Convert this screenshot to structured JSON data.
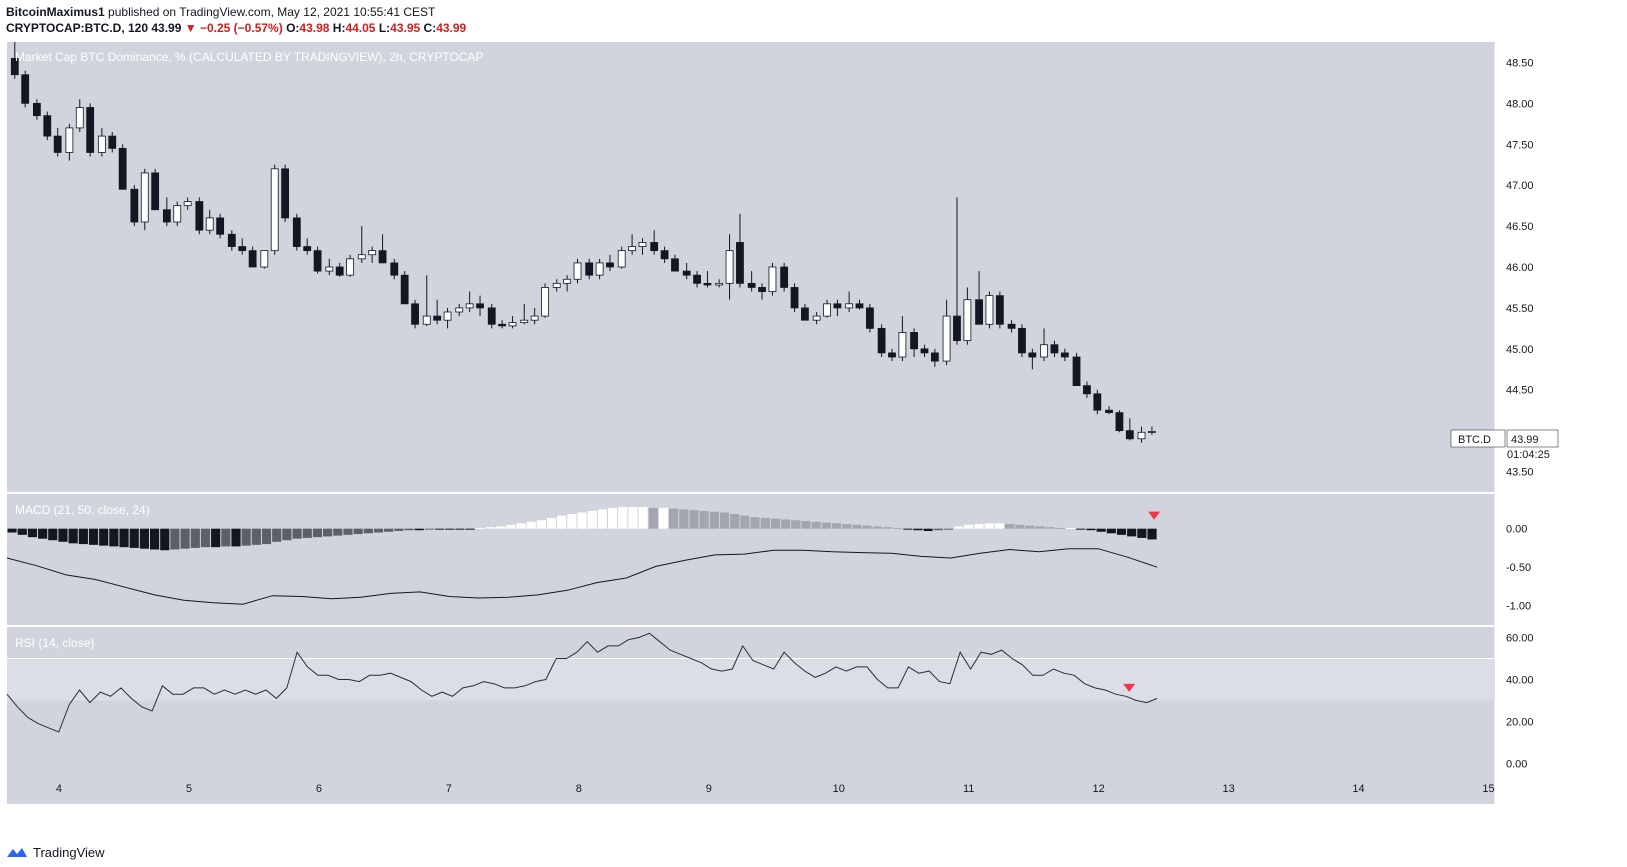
{
  "header": {
    "author": "BitcoinMaximus1",
    "published": "published on TradingView.com, May 12, 2021 10:55:41 CEST",
    "symbol": "CRYPTOCAP:BTC.D, 120",
    "last": "43.99",
    "change": "−0.25 (−0.57%)",
    "o_label": "O:",
    "o_value": "43.98",
    "h_label": "H:",
    "h_value": "44.05",
    "l_label": "L:",
    "l_value": "43.95",
    "c_label": "C:",
    "c_value": "43.99"
  },
  "colors": {
    "pane_bg": "#d1d4dc",
    "up_fill": "#ffffff",
    "down_fill": "#131722",
    "wick": "#131722",
    "macd_line": "#131722",
    "rsi_line": "#2a2e39",
    "rsi_band": "#dcdee5",
    "marker": "#f23645",
    "axis_text": "#131722"
  },
  "chart_data": [
    {
      "type": "candlestick",
      "title": "Market Cap BTC Dominance, % (CALCULATED BY TRADINGVIEW), 2h, CRYPTOCAP",
      "ylim": [
        43.25,
        48.75
      ],
      "yticks": [
        "48.50",
        "48.00",
        "47.50",
        "47.00",
        "46.50",
        "46.00",
        "45.50",
        "45.00",
        "44.50",
        "43.50"
      ],
      "xlim": [
        3.6,
        15.05
      ],
      "xticks": [
        "4",
        "5",
        "6",
        "7",
        "8",
        "9",
        "10",
        "11",
        "12",
        "13",
        "14",
        "15"
      ],
      "price_label": {
        "symbol": "BTC.D",
        "value": "43.99",
        "countdown": "01:04:25"
      },
      "candles": [
        {
          "t": 3.66,
          "o": 48.55,
          "h": 48.75,
          "l": 48.3,
          "c": 48.35
        },
        {
          "t": 3.74,
          "o": 48.35,
          "h": 48.4,
          "l": 47.95,
          "c": 48.0
        },
        {
          "t": 3.83,
          "o": 48.0,
          "h": 48.05,
          "l": 47.8,
          "c": 47.85
        },
        {
          "t": 3.91,
          "o": 47.85,
          "h": 47.9,
          "l": 47.55,
          "c": 47.6
        },
        {
          "t": 3.99,
          "o": 47.6,
          "h": 47.7,
          "l": 47.35,
          "c": 47.4
        },
        {
          "t": 4.08,
          "o": 47.4,
          "h": 47.75,
          "l": 47.3,
          "c": 47.7
        },
        {
          "t": 4.16,
          "o": 47.7,
          "h": 48.05,
          "l": 47.65,
          "c": 47.95
        },
        {
          "t": 4.24,
          "o": 47.95,
          "h": 48.0,
          "l": 47.35,
          "c": 47.4
        },
        {
          "t": 4.33,
          "o": 47.4,
          "h": 47.7,
          "l": 47.35,
          "c": 47.6
        },
        {
          "t": 4.41,
          "o": 47.6,
          "h": 47.65,
          "l": 47.4,
          "c": 47.45
        },
        {
          "t": 4.49,
          "o": 47.45,
          "h": 47.5,
          "l": 46.95,
          "c": 46.95
        },
        {
          "t": 4.58,
          "o": 46.95,
          "h": 47.0,
          "l": 46.5,
          "c": 46.55
        },
        {
          "t": 4.66,
          "o": 46.55,
          "h": 47.2,
          "l": 46.45,
          "c": 47.15
        },
        {
          "t": 4.74,
          "o": 47.15,
          "h": 47.2,
          "l": 46.7,
          "c": 46.7
        },
        {
          "t": 4.83,
          "o": 46.7,
          "h": 46.85,
          "l": 46.5,
          "c": 46.55
        },
        {
          "t": 4.91,
          "o": 46.55,
          "h": 46.8,
          "l": 46.5,
          "c": 46.75
        },
        {
          "t": 4.99,
          "o": 46.75,
          "h": 46.85,
          "l": 46.7,
          "c": 46.8
        },
        {
          "t": 5.08,
          "o": 46.8,
          "h": 46.85,
          "l": 46.4,
          "c": 46.45
        },
        {
          "t": 5.16,
          "o": 46.45,
          "h": 46.7,
          "l": 46.4,
          "c": 46.6
        },
        {
          "t": 5.24,
          "o": 46.6,
          "h": 46.65,
          "l": 46.35,
          "c": 46.4
        },
        {
          "t": 5.33,
          "o": 46.4,
          "h": 46.45,
          "l": 46.2,
          "c": 46.25
        },
        {
          "t": 5.41,
          "o": 46.25,
          "h": 46.35,
          "l": 46.15,
          "c": 46.2
        },
        {
          "t": 5.49,
          "o": 46.2,
          "h": 46.25,
          "l": 46.0,
          "c": 46.0
        },
        {
          "t": 5.58,
          "o": 46.0,
          "h": 46.2,
          "l": 45.98,
          "c": 46.2
        },
        {
          "t": 5.66,
          "o": 46.2,
          "h": 47.25,
          "l": 46.15,
          "c": 47.2
        },
        {
          "t": 5.74,
          "o": 47.2,
          "h": 47.25,
          "l": 46.55,
          "c": 46.6
        },
        {
          "t": 5.83,
          "o": 46.6,
          "h": 46.65,
          "l": 46.2,
          "c": 46.25
        },
        {
          "t": 5.91,
          "o": 46.25,
          "h": 46.35,
          "l": 46.15,
          "c": 46.2
        },
        {
          "t": 5.99,
          "o": 46.2,
          "h": 46.25,
          "l": 45.92,
          "c": 45.95
        },
        {
          "t": 6.08,
          "o": 45.95,
          "h": 46.1,
          "l": 45.9,
          "c": 46.0
        },
        {
          "t": 6.16,
          "o": 46.0,
          "h": 46.05,
          "l": 45.88,
          "c": 45.9
        },
        {
          "t": 6.24,
          "o": 45.9,
          "h": 46.15,
          "l": 45.88,
          "c": 46.1
        },
        {
          "t": 6.33,
          "o": 46.1,
          "h": 46.5,
          "l": 46.05,
          "c": 46.15
        },
        {
          "t": 6.41,
          "o": 46.15,
          "h": 46.25,
          "l": 46.05,
          "c": 46.2
        },
        {
          "t": 6.49,
          "o": 46.2,
          "h": 46.4,
          "l": 46.05,
          "c": 46.05
        },
        {
          "t": 6.58,
          "o": 46.05,
          "h": 46.1,
          "l": 45.85,
          "c": 45.9
        },
        {
          "t": 6.66,
          "o": 45.9,
          "h": 45.95,
          "l": 45.55,
          "c": 45.55
        },
        {
          "t": 6.74,
          "o": 45.55,
          "h": 45.6,
          "l": 45.25,
          "c": 45.3
        },
        {
          "t": 6.83,
          "o": 45.3,
          "h": 45.9,
          "l": 45.28,
          "c": 45.4
        },
        {
          "t": 6.91,
          "o": 45.4,
          "h": 45.6,
          "l": 45.3,
          "c": 45.35
        },
        {
          "t": 6.99,
          "o": 45.35,
          "h": 45.5,
          "l": 45.25,
          "c": 45.45
        },
        {
          "t": 7.08,
          "o": 45.45,
          "h": 45.55,
          "l": 45.4,
          "c": 45.5
        },
        {
          "t": 7.16,
          "o": 45.5,
          "h": 45.7,
          "l": 45.45,
          "c": 45.55
        },
        {
          "t": 7.24,
          "o": 45.55,
          "h": 45.65,
          "l": 45.4,
          "c": 45.5
        },
        {
          "t": 7.33,
          "o": 45.5,
          "h": 45.55,
          "l": 45.25,
          "c": 45.3
        },
        {
          "t": 7.41,
          "o": 45.3,
          "h": 45.35,
          "l": 45.25,
          "c": 45.28
        },
        {
          "t": 7.49,
          "o": 45.28,
          "h": 45.4,
          "l": 45.25,
          "c": 45.32
        },
        {
          "t": 7.58,
          "o": 45.32,
          "h": 45.55,
          "l": 45.3,
          "c": 45.35
        },
        {
          "t": 7.66,
          "o": 45.35,
          "h": 45.5,
          "l": 45.3,
          "c": 45.4
        },
        {
          "t": 7.74,
          "o": 45.4,
          "h": 45.8,
          "l": 45.38,
          "c": 45.75
        },
        {
          "t": 7.83,
          "o": 45.75,
          "h": 45.85,
          "l": 45.7,
          "c": 45.8
        },
        {
          "t": 7.91,
          "o": 45.8,
          "h": 45.9,
          "l": 45.7,
          "c": 45.85
        },
        {
          "t": 7.99,
          "o": 45.85,
          "h": 46.1,
          "l": 45.8,
          "c": 46.05
        },
        {
          "t": 8.08,
          "o": 46.05,
          "h": 46.1,
          "l": 45.85,
          "c": 45.9
        },
        {
          "t": 8.16,
          "o": 45.9,
          "h": 46.1,
          "l": 45.85,
          "c": 46.05
        },
        {
          "t": 8.24,
          "o": 46.05,
          "h": 46.15,
          "l": 45.95,
          "c": 46.0
        },
        {
          "t": 8.33,
          "o": 46.0,
          "h": 46.25,
          "l": 45.98,
          "c": 46.2
        },
        {
          "t": 8.41,
          "o": 46.2,
          "h": 46.4,
          "l": 46.15,
          "c": 46.25
        },
        {
          "t": 8.49,
          "o": 46.25,
          "h": 46.35,
          "l": 46.15,
          "c": 46.3
        },
        {
          "t": 8.58,
          "o": 46.3,
          "h": 46.45,
          "l": 46.15,
          "c": 46.2
        },
        {
          "t": 8.66,
          "o": 46.2,
          "h": 46.25,
          "l": 46.05,
          "c": 46.1
        },
        {
          "t": 8.74,
          "o": 46.1,
          "h": 46.15,
          "l": 45.95,
          "c": 45.95
        },
        {
          "t": 8.83,
          "o": 45.95,
          "h": 46.05,
          "l": 45.85,
          "c": 45.9
        },
        {
          "t": 8.91,
          "o": 45.9,
          "h": 45.95,
          "l": 45.75,
          "c": 45.8
        },
        {
          "t": 8.99,
          "o": 45.8,
          "h": 45.95,
          "l": 45.75,
          "c": 45.78
        },
        {
          "t": 9.08,
          "o": 45.78,
          "h": 45.85,
          "l": 45.75,
          "c": 45.8
        },
        {
          "t": 9.16,
          "o": 45.8,
          "h": 46.4,
          "l": 45.6,
          "c": 46.2
        },
        {
          "t": 9.24,
          "o": 46.3,
          "h": 46.65,
          "l": 45.75,
          "c": 45.8
        },
        {
          "t": 9.33,
          "o": 45.8,
          "h": 45.95,
          "l": 45.7,
          "c": 45.75
        },
        {
          "t": 9.41,
          "o": 45.75,
          "h": 45.8,
          "l": 45.6,
          "c": 45.7
        },
        {
          "t": 9.49,
          "o": 45.7,
          "h": 46.05,
          "l": 45.65,
          "c": 46.0
        },
        {
          "t": 9.58,
          "o": 46.0,
          "h": 46.05,
          "l": 45.7,
          "c": 45.75
        },
        {
          "t": 9.66,
          "o": 45.75,
          "h": 45.8,
          "l": 45.45,
          "c": 45.5
        },
        {
          "t": 9.74,
          "o": 45.5,
          "h": 45.55,
          "l": 45.35,
          "c": 45.35
        },
        {
          "t": 9.83,
          "o": 45.35,
          "h": 45.45,
          "l": 45.3,
          "c": 45.4
        },
        {
          "t": 9.91,
          "o": 45.4,
          "h": 45.6,
          "l": 45.38,
          "c": 45.55
        },
        {
          "t": 9.99,
          "o": 45.55,
          "h": 45.6,
          "l": 45.4,
          "c": 45.5
        },
        {
          "t": 10.08,
          "o": 45.5,
          "h": 45.7,
          "l": 45.45,
          "c": 45.55
        },
        {
          "t": 10.16,
          "o": 45.55,
          "h": 45.6,
          "l": 45.48,
          "c": 45.5
        },
        {
          "t": 10.24,
          "o": 45.5,
          "h": 45.55,
          "l": 45.2,
          "c": 45.25
        },
        {
          "t": 10.33,
          "o": 45.25,
          "h": 45.3,
          "l": 44.9,
          "c": 44.95
        },
        {
          "t": 10.41,
          "o": 44.95,
          "h": 45.0,
          "l": 44.85,
          "c": 44.9
        },
        {
          "t": 10.49,
          "o": 44.9,
          "h": 45.4,
          "l": 44.85,
          "c": 45.2
        },
        {
          "t": 10.58,
          "o": 45.2,
          "h": 45.25,
          "l": 44.9,
          "c": 45.0
        },
        {
          "t": 10.66,
          "o": 45.0,
          "h": 45.05,
          "l": 44.9,
          "c": 44.95
        },
        {
          "t": 10.74,
          "o": 44.95,
          "h": 45.0,
          "l": 44.78,
          "c": 44.85
        },
        {
          "t": 10.83,
          "o": 44.85,
          "h": 45.6,
          "l": 44.8,
          "c": 45.4
        },
        {
          "t": 10.91,
          "o": 45.4,
          "h": 46.85,
          "l": 45.05,
          "c": 45.1
        },
        {
          "t": 10.99,
          "o": 45.1,
          "h": 45.75,
          "l": 45.05,
          "c": 45.6
        },
        {
          "t": 11.08,
          "o": 45.6,
          "h": 45.95,
          "l": 45.3,
          "c": 45.3
        },
        {
          "t": 11.16,
          "o": 45.3,
          "h": 45.7,
          "l": 45.25,
          "c": 45.65
        },
        {
          "t": 11.24,
          "o": 45.65,
          "h": 45.7,
          "l": 45.25,
          "c": 45.3
        },
        {
          "t": 11.33,
          "o": 45.3,
          "h": 45.35,
          "l": 45.2,
          "c": 45.25
        },
        {
          "t": 11.41,
          "o": 45.25,
          "h": 45.3,
          "l": 44.9,
          "c": 44.95
        },
        {
          "t": 11.49,
          "o": 44.95,
          "h": 45.0,
          "l": 44.75,
          "c": 44.9
        },
        {
          "t": 11.58,
          "o": 44.9,
          "h": 45.25,
          "l": 44.85,
          "c": 45.05
        },
        {
          "t": 11.66,
          "o": 45.05,
          "h": 45.1,
          "l": 44.9,
          "c": 44.95
        },
        {
          "t": 11.74,
          "o": 44.95,
          "h": 45.0,
          "l": 44.85,
          "c": 44.9
        },
        {
          "t": 11.83,
          "o": 44.9,
          "h": 44.95,
          "l": 44.55,
          "c": 44.55
        },
        {
          "t": 11.91,
          "o": 44.55,
          "h": 44.6,
          "l": 44.4,
          "c": 44.45
        },
        {
          "t": 11.99,
          "o": 44.45,
          "h": 44.5,
          "l": 44.2,
          "c": 44.25
        },
        {
          "t": 12.08,
          "o": 44.25,
          "h": 44.3,
          "l": 44.2,
          "c": 44.22
        },
        {
          "t": 12.16,
          "o": 44.22,
          "h": 44.25,
          "l": 43.98,
          "c": 44.0
        },
        {
          "t": 12.24,
          "o": 44.0,
          "h": 44.15,
          "l": 43.88,
          "c": 43.9
        },
        {
          "t": 12.33,
          "o": 43.9,
          "h": 44.05,
          "l": 43.85,
          "c": 43.98
        },
        {
          "t": 12.41,
          "o": 43.98,
          "h": 44.05,
          "l": 43.95,
          "c": 43.99
        }
      ]
    },
    {
      "type": "histogram+line",
      "title": "MACD (21, 50, close, 24)",
      "ylim": [
        -1.25,
        0.45
      ],
      "yticks": [
        "0.00",
        "-0.50",
        "-1.00"
      ],
      "histogram": [
        -0.05,
        -0.08,
        -0.11,
        -0.13,
        -0.15,
        -0.17,
        -0.19,
        -0.2,
        -0.21,
        -0.22,
        -0.23,
        -0.24,
        -0.25,
        -0.26,
        -0.27,
        -0.28,
        -0.27,
        -0.26,
        -0.25,
        -0.24,
        -0.24,
        -0.23,
        -0.23,
        -0.22,
        -0.21,
        -0.2,
        -0.17,
        -0.15,
        -0.13,
        -0.12,
        -0.11,
        -0.1,
        -0.09,
        -0.08,
        -0.07,
        -0.06,
        -0.05,
        -0.04,
        -0.03,
        -0.02,
        -0.02,
        -0.01,
        -0.01,
        -0.01,
        -0.01,
        -0.01,
        0.01,
        0.02,
        0.03,
        0.05,
        0.07,
        0.09,
        0.11,
        0.14,
        0.17,
        0.19,
        0.21,
        0.23,
        0.25,
        0.27,
        0.28,
        0.28,
        0.28,
        0.27,
        0.27,
        0.26,
        0.25,
        0.24,
        0.23,
        0.22,
        0.21,
        0.19,
        0.17,
        0.15,
        0.14,
        0.13,
        0.12,
        0.11,
        0.1,
        0.09,
        0.08,
        0.07,
        0.06,
        0.05,
        0.04,
        0.03,
        0.02,
        0.01,
        -0.01,
        -0.02,
        -0.03,
        -0.02,
        -0.01,
        0.03,
        0.05,
        0.06,
        0.07,
        0.07,
        0.06,
        0.05,
        0.04,
        0.03,
        0.02,
        0.01,
        0.01,
        -0.01,
        -0.02,
        -0.04,
        -0.06,
        -0.08,
        -0.1,
        -0.12,
        -0.14
      ],
      "macd": [
        -0.38,
        -0.48,
        -0.6,
        -0.66,
        -0.76,
        -0.86,
        -0.93,
        -0.96,
        -0.98,
        -0.87,
        -0.88,
        -0.91,
        -0.89,
        -0.84,
        -0.82,
        -0.88,
        -0.9,
        -0.89,
        -0.86,
        -0.8,
        -0.7,
        -0.64,
        -0.49,
        -0.41,
        -0.34,
        -0.33,
        -0.28,
        -0.28,
        -0.3,
        -0.31,
        -0.32,
        -0.36,
        -0.38,
        -0.32,
        -0.27,
        -0.3,
        -0.26,
        -0.26,
        -0.37,
        -0.5
      ],
      "marker": "down-triangle"
    },
    {
      "type": "line",
      "title": "RSI (14, close)",
      "ylim": [
        -5,
        65
      ],
      "yticks": [
        "60.00",
        "40.00",
        "20.00",
        "0.00"
      ],
      "bands": [
        30,
        50
      ],
      "values": [
        33,
        27,
        22,
        19,
        17,
        15,
        28,
        35,
        29,
        34,
        32,
        36,
        31,
        27,
        25,
        37,
        33,
        33,
        36,
        36,
        33,
        35,
        33,
        35,
        33,
        35,
        31,
        36,
        53,
        46,
        42,
        42,
        40,
        40,
        39,
        42,
        42,
        43,
        41,
        39,
        35,
        32,
        34,
        32,
        36,
        37,
        39,
        38,
        36,
        36,
        37,
        39,
        40,
        50,
        50,
        53,
        58,
        53,
        56,
        56,
        59,
        60,
        62,
        58,
        54,
        52,
        50,
        48,
        45,
        44,
        45,
        56,
        49,
        47,
        45,
        53,
        48,
        44,
        41,
        43,
        46,
        44,
        46,
        46,
        40,
        36,
        36,
        46,
        43,
        44,
        39,
        38,
        53,
        45,
        53,
        52,
        54,
        50,
        47,
        42,
        42,
        45,
        43,
        42,
        38,
        36,
        35,
        33,
        32,
        30,
        29,
        31
      ],
      "marker": "down-triangle"
    }
  ],
  "footer": {
    "brand": "TradingView"
  }
}
